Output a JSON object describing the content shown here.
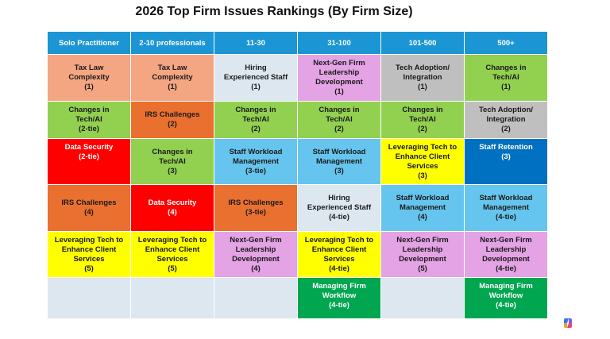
{
  "title": "2026 Top Firm Issues Rankings (By Firm Size)",
  "columns": [
    "Solo Practitioner",
    "2-10 professionals",
    "11-30",
    "31-100",
    "101-500",
    "500+"
  ],
  "colors": {
    "header": "#1b95d3",
    "tax_law_complexity": "#f4a582",
    "tech_ai": "#92d050",
    "hiring": "#dde7f0",
    "next_gen": "#e4a3e4",
    "tech_adoption": "#bfbfbf",
    "irs": "#ea7030",
    "data_security": "#ff0000",
    "staff_workload": "#66c5ee",
    "leveraging_tech": "#ffff00",
    "staff_retention": "#0070c0",
    "managing_workflow": "#00a650",
    "empty": "#dde7f0"
  },
  "rows": [
    [
      {
        "text": "Tax Law\nComplexity\n(1)",
        "color": "tax_law_complexity"
      },
      {
        "text": "Tax Law\nComplexity\n(1)",
        "color": "tax_law_complexity"
      },
      {
        "text": "Hiring\nExperienced Staff\n(1)",
        "color": "hiring"
      },
      {
        "text": "Next-Gen Firm\nLeadership\nDevelopment\n(1)",
        "color": "next_gen"
      },
      {
        "text": "Tech Adoption/\nIntegration\n(1)",
        "color": "tech_adoption"
      },
      {
        "text": "Changes in\nTech/AI\n(1)",
        "color": "tech_ai"
      }
    ],
    [
      {
        "text": "Changes in\nTech/AI\n(2-tie)",
        "color": "tech_ai"
      },
      {
        "text": "IRS Challenges\n(2)",
        "color": "irs"
      },
      {
        "text": "Changes in\nTech/AI\n(2)",
        "color": "tech_ai"
      },
      {
        "text": "Changes in\nTech/AI\n(2)",
        "color": "tech_ai"
      },
      {
        "text": "Changes in\nTech/AI\n(2)",
        "color": "tech_ai"
      },
      {
        "text": "Tech Adoption/\nIntegration\n(2)",
        "color": "tech_adoption"
      }
    ],
    [
      {
        "text": "Data Security\n(2-tie)",
        "color": "data_security"
      },
      {
        "text": "Changes in\nTech/AI\n(3)",
        "color": "tech_ai"
      },
      {
        "text": "Staff Workload\nManagement\n(3-tie)",
        "color": "staff_workload"
      },
      {
        "text": "Staff Workload\nManagement\n(3)",
        "color": "staff_workload"
      },
      {
        "text": "Leveraging Tech to\nEnhance Client\nServices\n(3)",
        "color": "leveraging_tech"
      },
      {
        "text": "Staff Retention\n(3)",
        "color": "staff_retention"
      }
    ],
    [
      {
        "text": "IRS Challenges\n(4)",
        "color": "irs"
      },
      {
        "text": "Data Security\n(4)",
        "color": "data_security"
      },
      {
        "text": "IRS Challenges\n(3-tie)",
        "color": "irs"
      },
      {
        "text": "Hiring\nExperienced Staff\n(4-tie)",
        "color": "hiring"
      },
      {
        "text": "Staff Workload\nManagement\n(4)",
        "color": "staff_workload"
      },
      {
        "text": "Staff Workload\nManagement\n(4-tie)",
        "color": "staff_workload"
      }
    ],
    [
      {
        "text": "Leveraging Tech to\nEnhance Client\nServices\n(5)",
        "color": "leveraging_tech"
      },
      {
        "text": "Leveraging Tech to\nEnhance Client\nServices\n(5)",
        "color": "leveraging_tech"
      },
      {
        "text": "Next-Gen Firm\nLeadership\nDevelopment\n(4)",
        "color": "next_gen"
      },
      {
        "text": "Leveraging Tech to\nEnhance Client\nServices\n(4-tie)",
        "color": "leveraging_tech"
      },
      {
        "text": "Next-Gen Firm\nLeadership\nDevelopment\n(5)",
        "color": "next_gen"
      },
      {
        "text": "Next-Gen Firm\nLeadership\nDevelopment\n(4-tie)",
        "color": "next_gen"
      }
    ],
    [
      {
        "text": "",
        "color": "empty"
      },
      {
        "text": "",
        "color": "empty"
      },
      {
        "text": "",
        "color": "empty"
      },
      {
        "text": "Managing Firm\nWorkflow\n(4-tie)",
        "color": "managing_workflow"
      },
      {
        "text": "",
        "color": "empty"
      },
      {
        "text": "Managing Firm\nWorkflow\n(4-tie)",
        "color": "managing_workflow"
      }
    ]
  ]
}
